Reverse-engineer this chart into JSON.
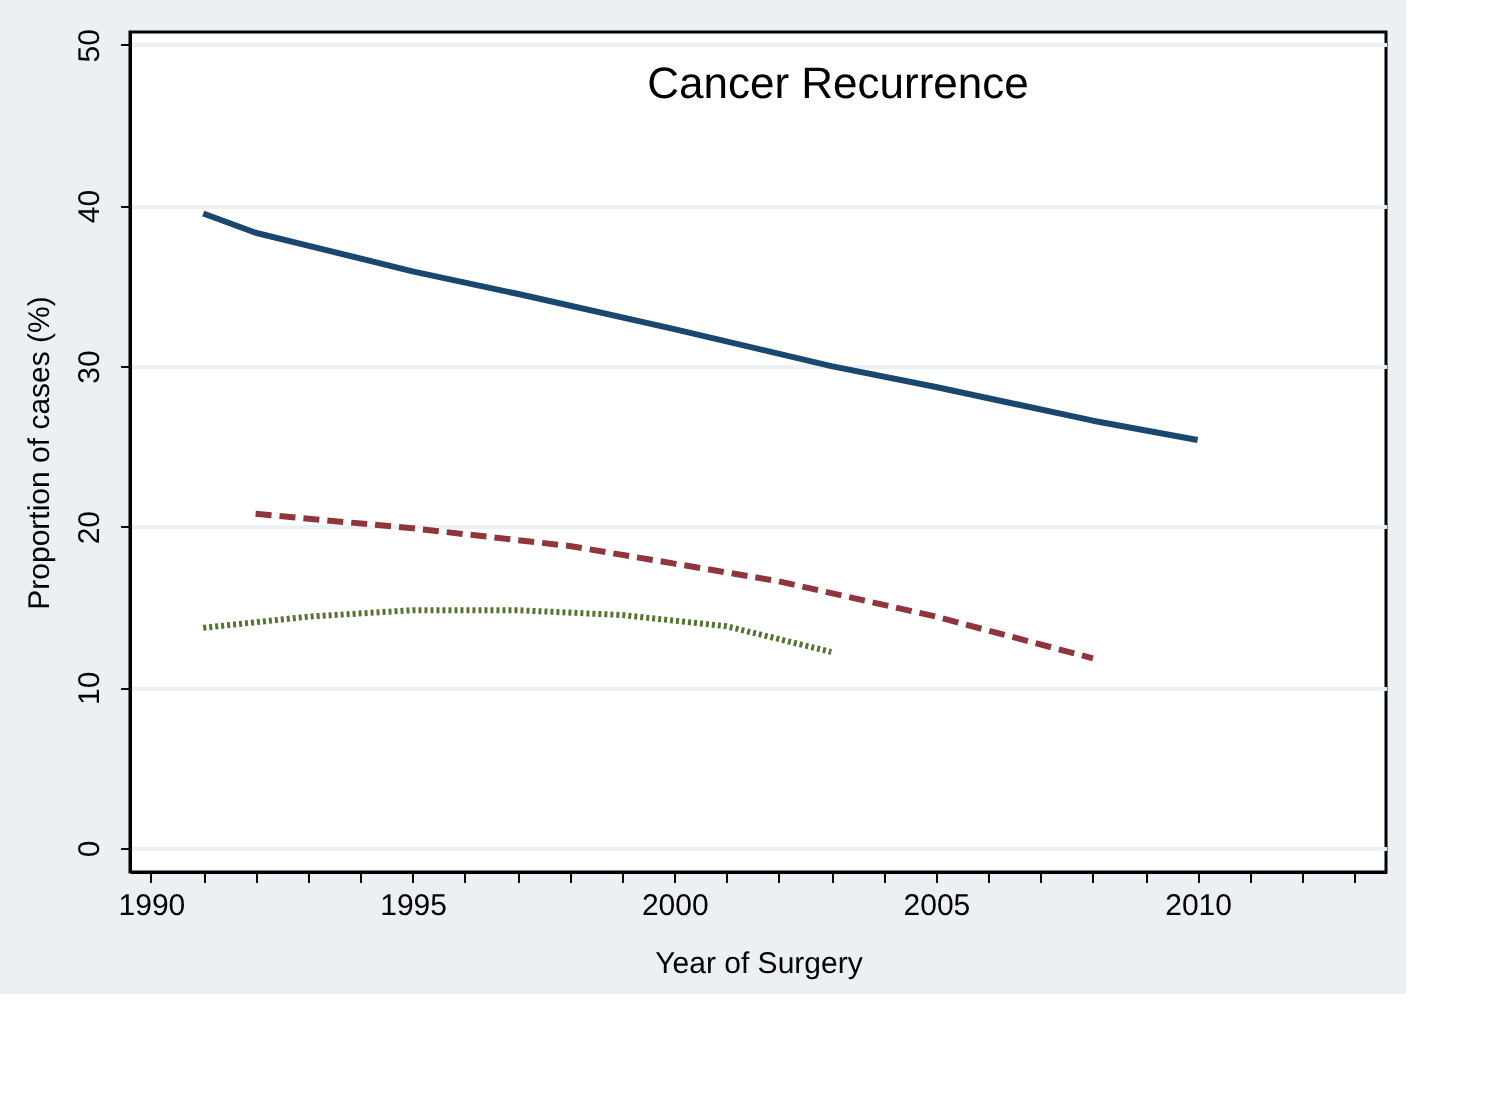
{
  "chart_data": {
    "type": "line",
    "title": "Cancer Recurrence",
    "xlabel": "Year of Surgery",
    "ylabel": "Proportion of cases (%)",
    "xlim": [
      1989.6,
      2013.6
    ],
    "ylim": [
      -1.5,
      50.8
    ],
    "xticks": [
      1990,
      {
        "value": 1991,
        "label": null
      },
      {
        "value": 1992,
        "label": null
      },
      {
        "value": 1993,
        "label": null
      },
      {
        "value": 1994,
        "label": null
      },
      1995,
      {
        "value": 1996,
        "label": null
      },
      {
        "value": 1997,
        "label": null
      },
      {
        "value": 1998,
        "label": null
      },
      {
        "value": 1999,
        "label": null
      },
      2000,
      {
        "value": 2001,
        "label": null
      },
      {
        "value": 2002,
        "label": null
      },
      {
        "value": 2003,
        "label": null
      },
      {
        "value": 2004,
        "label": null
      },
      2005,
      {
        "value": 2006,
        "label": null
      },
      {
        "value": 2007,
        "label": null
      },
      {
        "value": 2008,
        "label": null
      },
      {
        "value": 2009,
        "label": null
      },
      2010,
      {
        "value": 2011,
        "label": null
      },
      {
        "value": 2012,
        "label": null
      },
      {
        "value": 2013,
        "label": null
      }
    ],
    "yticks": [
      0,
      10,
      20,
      30,
      40,
      50
    ],
    "grid": "y",
    "marker": "none",
    "series": [
      {
        "color": "#1a476f",
        "line_style": "solid",
        "x": [
          1991,
          1992,
          1993,
          1995,
          1997,
          2000,
          2003,
          2005,
          2008,
          2010
        ],
        "values": [
          39.5,
          38.3,
          37.5,
          35.9,
          34.5,
          32.3,
          30.0,
          28.7,
          26.6,
          25.4
        ]
      },
      {
        "color": "#90353b",
        "line_style": "dashed",
        "x": [
          1992,
          1995,
          1998,
          2000,
          2002,
          2005,
          2008
        ],
        "values": [
          20.8,
          19.9,
          18.8,
          17.7,
          16.6,
          14.4,
          11.8
        ]
      },
      {
        "color": "#55752f",
        "line_style": "dotted",
        "x": [
          1991,
          1993,
          1995,
          1997,
          1999,
          2001,
          2003
        ],
        "values": [
          13.7,
          14.4,
          14.8,
          14.8,
          14.5,
          13.8,
          12.2
        ]
      }
    ]
  }
}
